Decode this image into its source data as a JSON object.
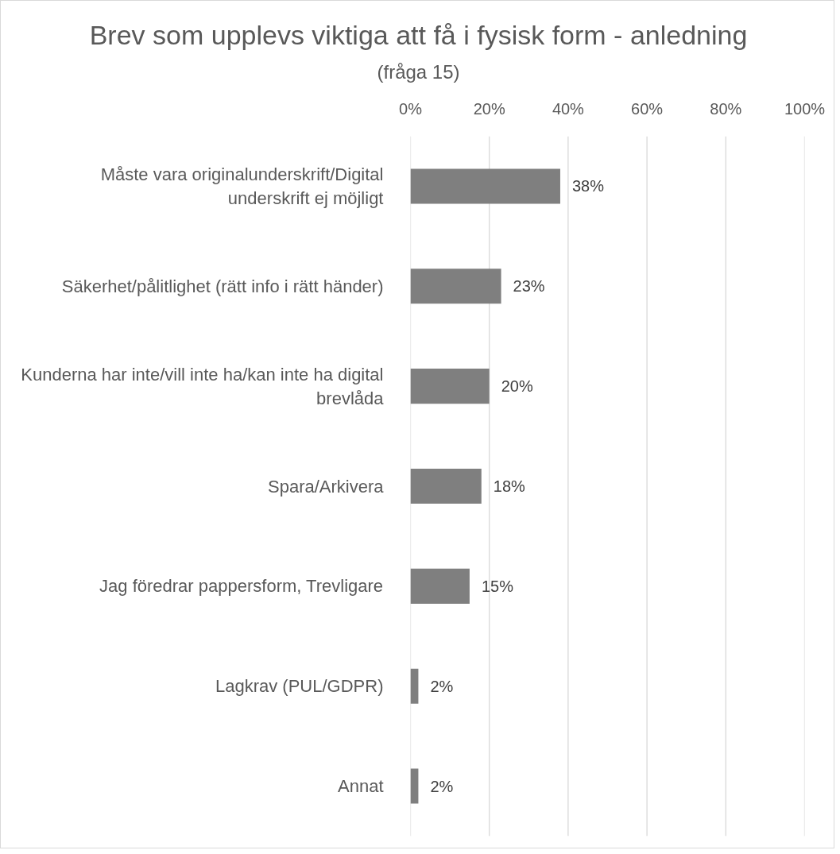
{
  "chart_data": {
    "type": "bar",
    "orientation": "horizontal",
    "title": "Brev som upplevs viktiga att få i fysisk form - anledning",
    "subtitle": "(fråga 15)",
    "categories": [
      "Måste vara originalunderskrift/Digital underskrift ej möjligt",
      "Säkerhet/pålitlighet (rätt info i rätt händer)",
      "Kunderna har inte/vill inte ha/kan inte ha digital brevlåda",
      "Spara/Arkivera",
      "Jag föredrar pappersform, Trevligare",
      "Lagkrav (PUL/GDPR)",
      "Annat"
    ],
    "values": [
      38,
      23,
      20,
      18,
      15,
      2,
      2
    ],
    "value_labels": [
      "38%",
      "23%",
      "20%",
      "18%",
      "15%",
      "2%",
      "2%"
    ],
    "color": "#7f7f7f",
    "xlim": [
      0,
      100
    ],
    "xticks": [
      {
        "value": 0,
        "label": "0%"
      },
      {
        "value": 20,
        "label": "20%"
      },
      {
        "value": 40,
        "label": "40%"
      },
      {
        "value": 60,
        "label": "60%"
      },
      {
        "value": 80,
        "label": "80%"
      },
      {
        "value": 100,
        "label": "100%"
      }
    ],
    "grid": "x"
  }
}
